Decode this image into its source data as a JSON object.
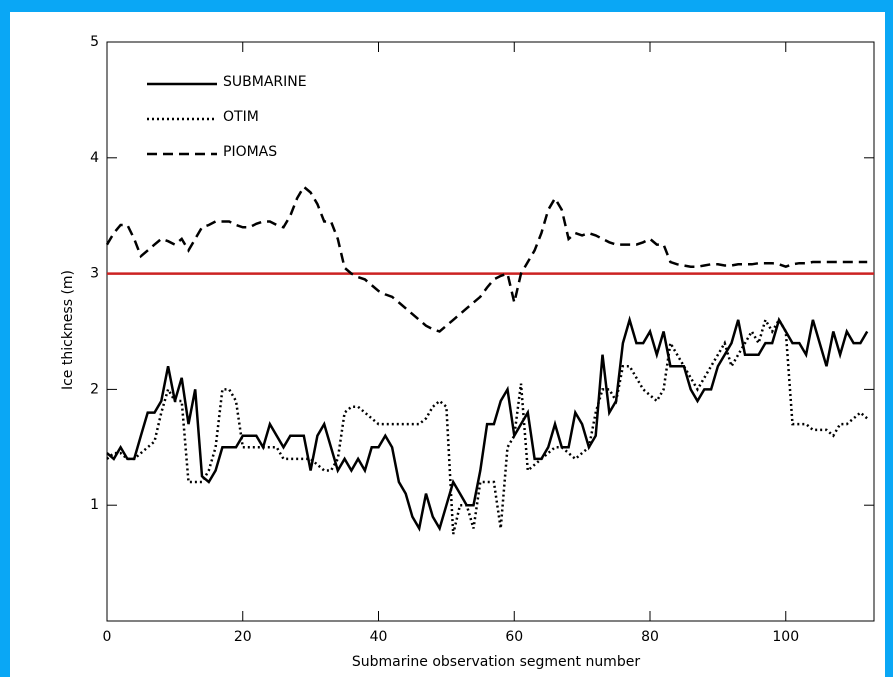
{
  "chart_data": {
    "type": "line",
    "x_label": "Submarine observation segment number",
    "y_label": "Ice thickness (m)",
    "x": [
      0,
      1,
      2,
      3,
      4,
      5,
      6,
      7,
      8,
      9,
      10,
      11,
      12,
      13,
      14,
      15,
      16,
      17,
      18,
      19,
      20,
      21,
      22,
      23,
      24,
      25,
      26,
      27,
      28,
      29,
      30,
      31,
      32,
      33,
      34,
      35,
      36,
      37,
      38,
      39,
      40,
      41,
      42,
      43,
      44,
      45,
      46,
      47,
      48,
      49,
      50,
      51,
      52,
      53,
      54,
      55,
      56,
      57,
      58,
      59,
      60,
      61,
      62,
      63,
      64,
      65,
      66,
      67,
      68,
      69,
      70,
      71,
      72,
      73,
      74,
      75,
      76,
      77,
      78,
      79,
      80,
      81,
      82,
      83,
      84,
      85,
      86,
      87,
      88,
      89,
      90,
      91,
      92,
      93,
      94,
      95,
      96,
      97,
      98,
      99,
      100,
      101,
      102,
      103,
      104,
      105,
      106,
      107,
      108,
      109,
      110,
      111,
      112
    ],
    "series": [
      {
        "name": "SUBMARINE",
        "color": "#000000",
        "dash": "solid",
        "values": [
          1.45,
          1.4,
          1.5,
          1.4,
          1.4,
          1.6,
          1.8,
          1.8,
          1.9,
          2.2,
          1.9,
          2.1,
          1.7,
          2.0,
          1.25,
          1.2,
          1.3,
          1.5,
          1.5,
          1.5,
          1.6,
          1.6,
          1.6,
          1.5,
          1.7,
          1.6,
          1.5,
          1.6,
          1.6,
          1.6,
          1.3,
          1.6,
          1.7,
          1.5,
          1.3,
          1.4,
          1.3,
          1.4,
          1.3,
          1.5,
          1.5,
          1.6,
          1.5,
          1.2,
          1.1,
          0.9,
          0.8,
          1.1,
          0.9,
          0.8,
          1.0,
          1.2,
          1.1,
          1.0,
          1.0,
          1.3,
          1.7,
          1.7,
          1.9,
          2.0,
          1.6,
          1.7,
          1.8,
          1.4,
          1.4,
          1.5,
          1.7,
          1.5,
          1.5,
          1.8,
          1.7,
          1.5,
          1.6,
          2.3,
          1.8,
          1.9,
          2.4,
          2.6,
          2.4,
          2.4,
          2.5,
          2.3,
          2.5,
          2.2,
          2.2,
          2.2,
          2.0,
          1.9,
          2.0,
          2.0,
          2.2,
          2.3,
          2.4,
          2.6,
          2.3,
          2.3,
          2.3,
          2.4,
          2.4,
          2.6,
          2.5,
          2.4,
          2.4,
          2.3,
          2.6,
          2.4,
          2.2,
          2.5,
          2.3,
          2.5,
          2.4,
          2.4,
          2.5
        ]
      },
      {
        "name": "OTIM",
        "color": "#000000",
        "dash": "dotted",
        "values": [
          1.4,
          1.45,
          1.45,
          1.4,
          1.4,
          1.45,
          1.5,
          1.55,
          1.8,
          2.0,
          1.9,
          1.9,
          1.2,
          1.2,
          1.2,
          1.3,
          1.5,
          2.0,
          2.0,
          1.9,
          1.5,
          1.5,
          1.5,
          1.5,
          1.5,
          1.5,
          1.4,
          1.4,
          1.4,
          1.4,
          1.4,
          1.35,
          1.3,
          1.3,
          1.4,
          1.8,
          1.85,
          1.85,
          1.8,
          1.75,
          1.7,
          1.7,
          1.7,
          1.7,
          1.7,
          1.7,
          1.7,
          1.75,
          1.85,
          1.9,
          1.85,
          0.75,
          1.0,
          1.0,
          0.8,
          1.2,
          1.2,
          1.2,
          0.8,
          1.5,
          1.6,
          2.05,
          1.3,
          1.35,
          1.4,
          1.45,
          1.5,
          1.5,
          1.45,
          1.4,
          1.45,
          1.5,
          1.8,
          2.0,
          2.0,
          1.9,
          2.2,
          2.2,
          2.1,
          2.0,
          1.95,
          1.9,
          2.0,
          2.4,
          2.3,
          2.2,
          2.1,
          2.0,
          2.1,
          2.2,
          2.3,
          2.4,
          2.2,
          2.3,
          2.4,
          2.5,
          2.4,
          2.6,
          2.5,
          2.6,
          2.5,
          1.7,
          1.7,
          1.7,
          1.65,
          1.65,
          1.65,
          1.6,
          1.7,
          1.7,
          1.75,
          1.8,
          1.75
        ]
      },
      {
        "name": "PIOMAS",
        "color": "#000000",
        "dash": "dashed",
        "values": [
          3.25,
          3.35,
          3.42,
          3.42,
          3.3,
          3.15,
          3.2,
          3.25,
          3.3,
          3.28,
          3.25,
          3.3,
          3.2,
          3.3,
          3.4,
          3.42,
          3.45,
          3.45,
          3.45,
          3.42,
          3.4,
          3.4,
          3.43,
          3.45,
          3.45,
          3.42,
          3.4,
          3.5,
          3.65,
          3.75,
          3.7,
          3.6,
          3.45,
          3.45,
          3.3,
          3.05,
          3.0,
          2.97,
          2.95,
          2.9,
          2.85,
          2.82,
          2.8,
          2.75,
          2.7,
          2.65,
          2.6,
          2.55,
          2.52,
          2.5,
          2.55,
          2.6,
          2.65,
          2.7,
          2.75,
          2.8,
          2.88,
          2.95,
          2.98,
          3.0,
          2.75,
          3.0,
          3.1,
          3.2,
          3.35,
          3.55,
          3.65,
          3.55,
          3.3,
          3.35,
          3.33,
          3.35,
          3.33,
          3.3,
          3.27,
          3.25,
          3.25,
          3.25,
          3.25,
          3.27,
          3.3,
          3.25,
          3.25,
          3.1,
          3.08,
          3.07,
          3.06,
          3.06,
          3.07,
          3.08,
          3.08,
          3.07,
          3.07,
          3.08,
          3.08,
          3.08,
          3.09,
          3.09,
          3.09,
          3.08,
          3.06,
          3.08,
          3.09,
          3.09,
          3.1,
          3.1,
          3.1,
          3.1,
          3.1,
          3.1,
          3.1,
          3.1,
          3.1
        ]
      }
    ],
    "reference_line": {
      "value": 3,
      "color": "#cc2222"
    },
    "xlim": [
      0,
      113
    ],
    "xticks": [
      0,
      20,
      40,
      60,
      80,
      100
    ],
    "ylim": [
      0,
      5
    ],
    "yticks": [
      1,
      2,
      3,
      4,
      5
    ],
    "legend": "upper left"
  }
}
